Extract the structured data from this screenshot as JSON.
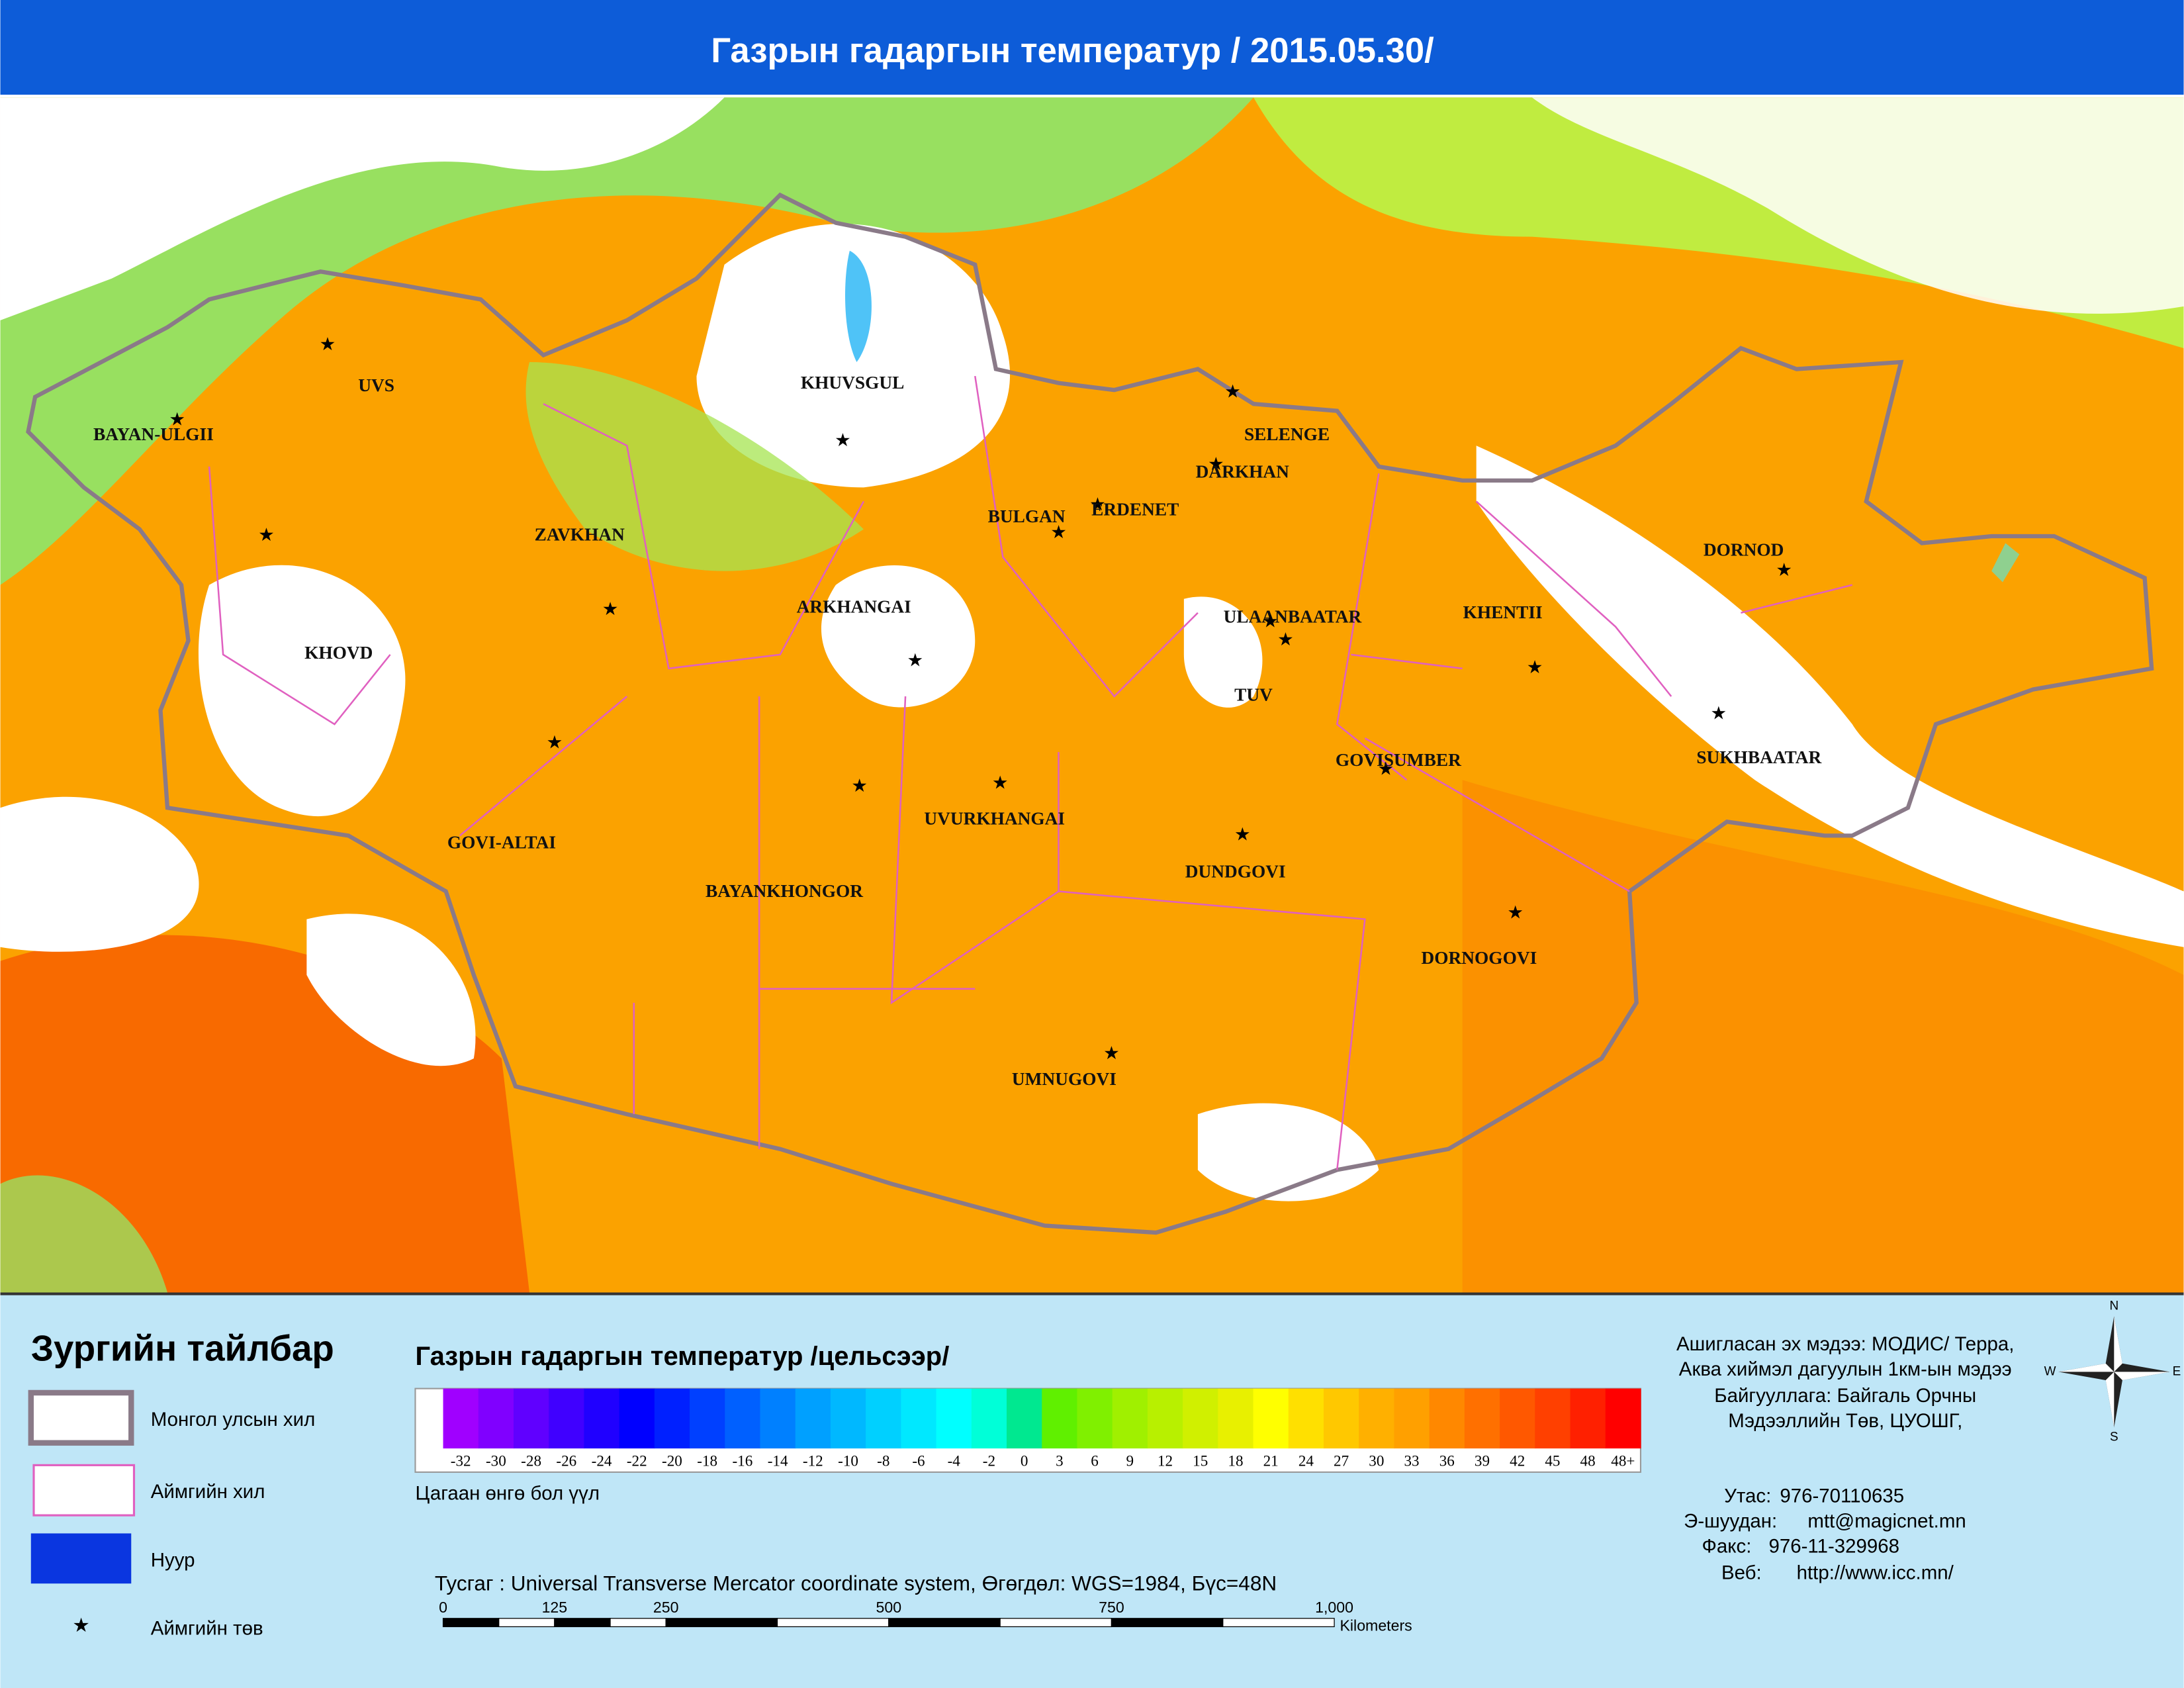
{
  "header": {
    "title": "Газрын гадаргын температур / 2015.05.30/"
  },
  "map": {
    "aimags": [
      "UVS",
      "BAYAN-ULGII",
      "KHUVSGUL",
      "SELENGE",
      "DARKHAN",
      "ERDENET",
      "BULGAN",
      "ZAVKHAN",
      "KHOVD",
      "ARKHANGAI",
      "ULAANBAATAR",
      "KHENTII",
      "DORNOD",
      "TUV",
      "SUKHBAATAR",
      "GOVISUMBER",
      "GOVI-ALTAI",
      "UVURKHANGAI",
      "BAYANKHONGOR",
      "DUNDGOVI",
      "DORNOGOVI",
      "UMNUGOVI"
    ]
  },
  "legend": {
    "title": "Зургийн тайлбар",
    "items": [
      "Монгол улсын хил",
      "Аймгийн хил",
      "Нуур",
      "Аймгийн төв"
    ]
  },
  "colorbar": {
    "title": "Газрын гадаргын температур /цельсээр/",
    "note": "Цагаан өнгө бол үүл",
    "labels": [
      "-32",
      "-30",
      "-28",
      "-26",
      "-24",
      "-22",
      "-20",
      "-18",
      "-16",
      "-14",
      "-12",
      "-10",
      "-8",
      "-6",
      "-4",
      "-2",
      "0",
      "3",
      "6",
      "9",
      "12",
      "15",
      "18",
      "21",
      "24",
      "27",
      "30",
      "33",
      "36",
      "39",
      "42",
      "45",
      "48",
      "48+"
    ],
    "colors": [
      "#a000ff",
      "#8000ff",
      "#6000ff",
      "#4000ff",
      "#2000ff",
      "#0000ff",
      "#0020ff",
      "#0040ff",
      "#0060ff",
      "#0080ff",
      "#00a0ff",
      "#00b8ff",
      "#00d0ff",
      "#00e8ff",
      "#00ffff",
      "#00ffd8",
      "#00e890",
      "#60f000",
      "#80f000",
      "#a0f000",
      "#b8f000",
      "#d0f000",
      "#e8f000",
      "#ffff00",
      "#ffe000",
      "#ffc800",
      "#ffb000",
      "#ffa000",
      "#ff8800",
      "#ff7000",
      "#ff5800",
      "#ff4000",
      "#ff2000",
      "#ff0000"
    ]
  },
  "projection": {
    "text": "Тусгаг : Universal Transverse Mercator coordinate system, Өгөгдөл: WGS=1984, Бүс=48N"
  },
  "scale": {
    "labels": [
      "0",
      "125",
      "250",
      "500",
      "750",
      "1,000"
    ],
    "unit": "Kilometers"
  },
  "source": {
    "lines": [
      "Ашигласан эх мэдээ: МОДИС/ Терра,",
      "Аква хиймэл дагуулын 1км-ын мэдээ",
      "Байгууллага: Байгаль Орчны",
      "Мэдээллийн Төв, ЦУОШГ,"
    ]
  },
  "contacts": [
    {
      "label": "Утас:",
      "value": "976-70110635"
    },
    {
      "label": "Э-шуудан:",
      "value": "mtt@magicnet.mn"
    },
    {
      "label": "Факс:",
      "value": "976-11-329968"
    },
    {
      "label": "Веб:",
      "value": "http://www.icc.mn/"
    }
  ],
  "compass": {
    "n": "N",
    "e": "E",
    "s": "S",
    "w": "W"
  }
}
